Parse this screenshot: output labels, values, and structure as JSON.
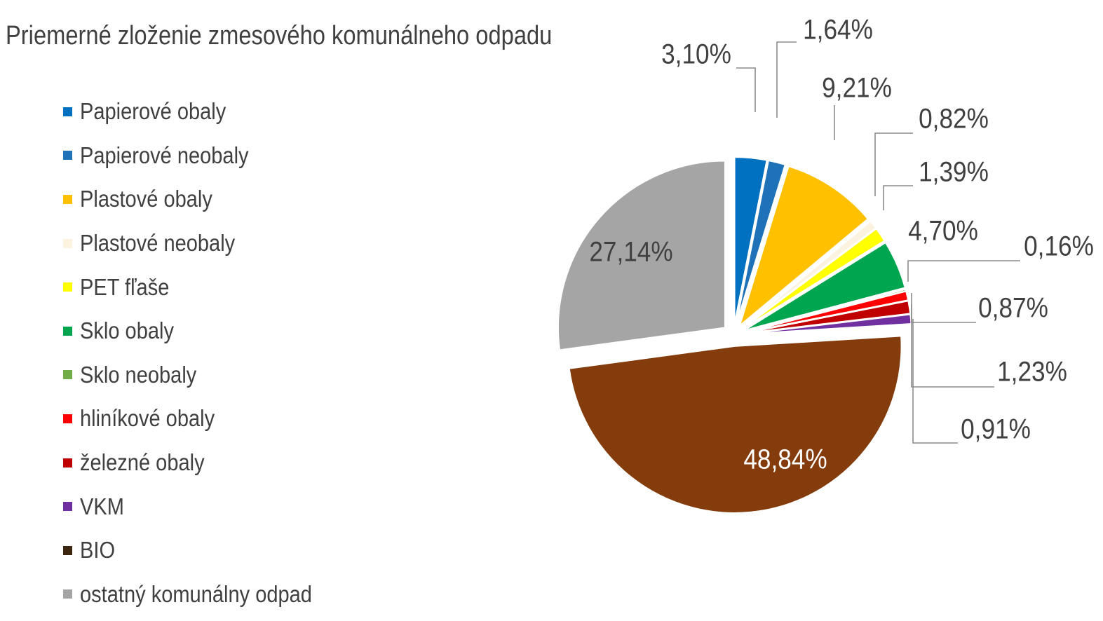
{
  "chart_data": {
    "type": "pie",
    "title": "Priemerné zloženie zmesového komunálneho odpadu",
    "legend_position": "left",
    "slices": [
      {
        "name": "Papierové obaly",
        "value": 3.1,
        "label": "3,10%",
        "color": "#0070C0"
      },
      {
        "name": "Papierové neobaly",
        "value": 1.64,
        "label": "1,64%",
        "color": "#1F72B8"
      },
      {
        "name": "Plastové obaly",
        "value": 9.21,
        "label": "9,21%",
        "color": "#FFC000"
      },
      {
        "name": "Plastové neobaly",
        "value": 0.82,
        "label": "0,82%",
        "color": "#FBF3DF"
      },
      {
        "name": "PET fľaše",
        "value": 1.39,
        "label": "1,39%",
        "color": "#FFFF00"
      },
      {
        "name": "Sklo obaly",
        "value": 4.7,
        "label": "4,70%",
        "color": "#00A550"
      },
      {
        "name": "Sklo neobaly",
        "value": 0.16,
        "label": "0,16%",
        "color": "#70AD47"
      },
      {
        "name": "hliníkové obaly",
        "value": 0.87,
        "label": "0,87%",
        "color": "#FF0000"
      },
      {
        "name": "železné obaly",
        "value": 1.23,
        "label": "1,23%",
        "color": "#C00000"
      },
      {
        "name": "VKM",
        "value": 0.91,
        "label": "0,91%",
        "color": "#7030A0"
      },
      {
        "name": "BIO",
        "value": 48.84,
        "label": "48,84%",
        "color": "#843C0C",
        "legend_color": "#3D2610"
      },
      {
        "name": "ostatný komunálny odpad",
        "value": 27.14,
        "label": "27,14%",
        "color": "#A5A5A5"
      }
    ]
  }
}
